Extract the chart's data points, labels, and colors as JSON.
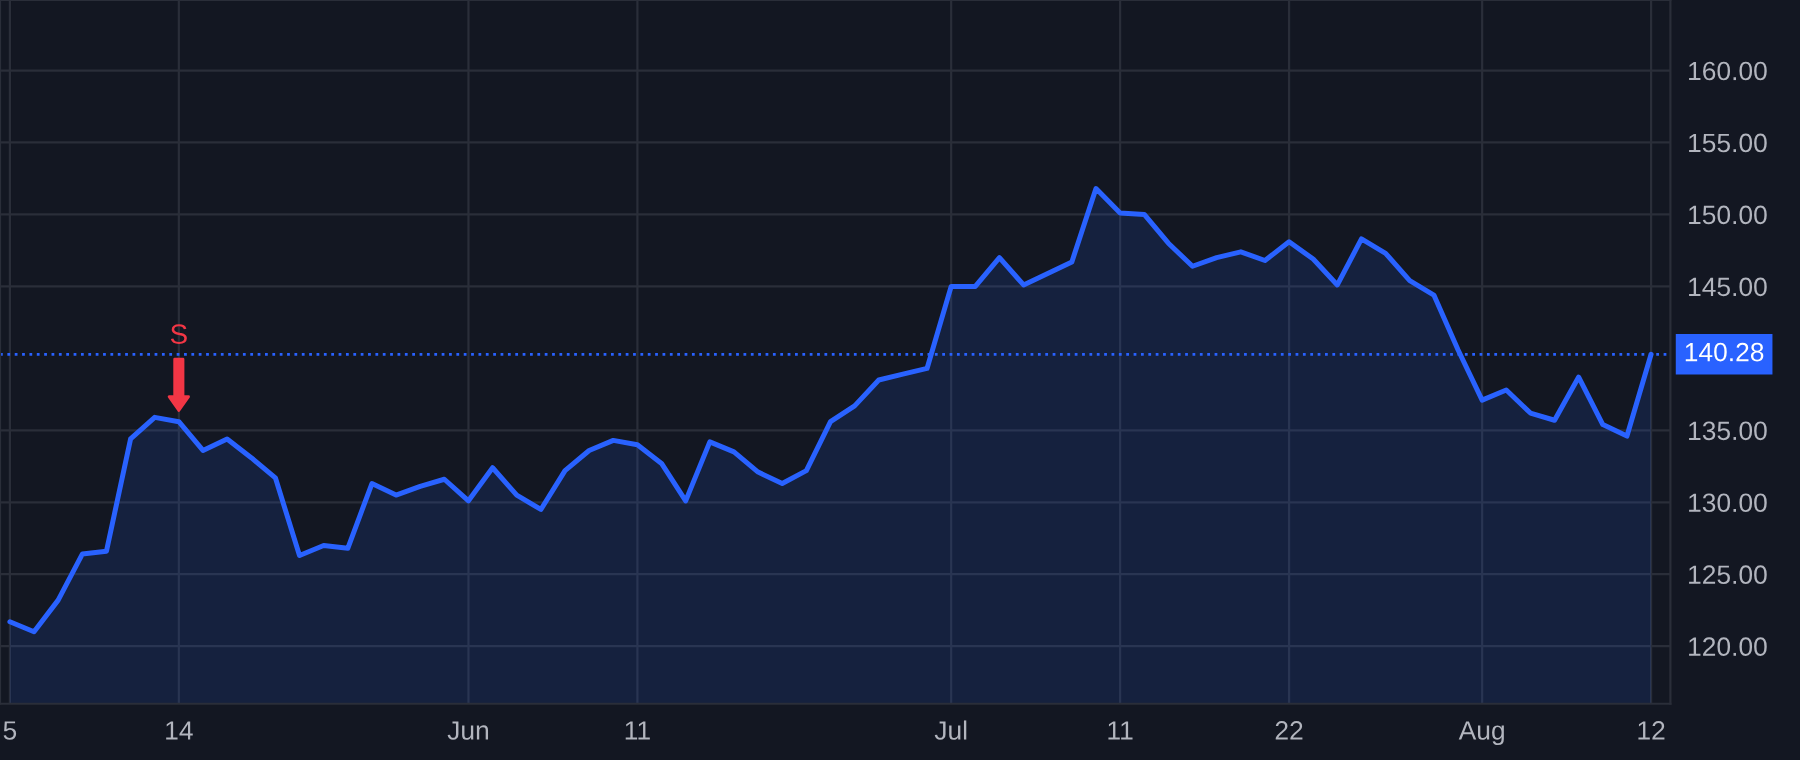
{
  "chart_data": {
    "type": "area",
    "categories": [
      "5",
      null,
      null,
      null,
      null,
      null,
      null,
      "14",
      null,
      null,
      null,
      null,
      null,
      null,
      null,
      null,
      null,
      null,
      null,
      "Jun",
      null,
      null,
      null,
      null,
      null,
      null,
      "11",
      null,
      null,
      null,
      null,
      null,
      null,
      null,
      null,
      null,
      null,
      null,
      null,
      "Jul",
      null,
      null,
      null,
      null,
      null,
      null,
      "11",
      null,
      null,
      null,
      null,
      null,
      null,
      "22",
      null,
      null,
      null,
      null,
      null,
      null,
      null,
      "Aug",
      null,
      null,
      null,
      null,
      null,
      null,
      "12"
    ],
    "series": [
      {
        "color": "#2962ff",
        "values": [
          121.7,
          121.0,
          123.2,
          126.4,
          126.6,
          134.4,
          135.9,
          135.6,
          133.6,
          134.4,
          133.1,
          131.7,
          126.3,
          127.0,
          126.8,
          131.3,
          130.5,
          131.1,
          131.6,
          130.1,
          132.4,
          130.5,
          129.5,
          132.2,
          133.6,
          134.3,
          134.0,
          132.7,
          130.1,
          134.2,
          133.5,
          132.1,
          131.3,
          132.2,
          135.6,
          136.7,
          138.5,
          138.9,
          139.3,
          145.0,
          145.0,
          147.0,
          145.1,
          145.9,
          146.7,
          151.8,
          150.1,
          150.0,
          148.0,
          146.4,
          147.0,
          147.4,
          146.8,
          148.1,
          146.9,
          145.1,
          148.3,
          147.3,
          145.4,
          144.4,
          140.6,
          137.1,
          137.8,
          136.2,
          135.7,
          138.7,
          135.4,
          134.6,
          140.28
        ]
      }
    ],
    "ylim": [
      116,
      164.9
    ],
    "yticks": [
      {
        "value": 120,
        "label": "120.00"
      },
      {
        "value": 125,
        "label": "125.00"
      },
      {
        "value": 130,
        "label": "130.00"
      },
      {
        "value": 135,
        "label": "135.00"
      },
      {
        "value": 145,
        "label": "145.00"
      },
      {
        "value": 150,
        "label": "150.00"
      },
      {
        "value": 155,
        "label": "155.00"
      },
      {
        "value": 160,
        "label": "160.00"
      }
    ],
    "ref_lines": [
      {
        "axis": "y",
        "value": 140.28,
        "label": "140.28",
        "color": "#2962ff",
        "line_style": "dotted"
      }
    ],
    "annotations": [
      {
        "text": "S",
        "x": "14",
        "y": 135.6
      }
    ],
    "grid": true,
    "legend": false
  }
}
